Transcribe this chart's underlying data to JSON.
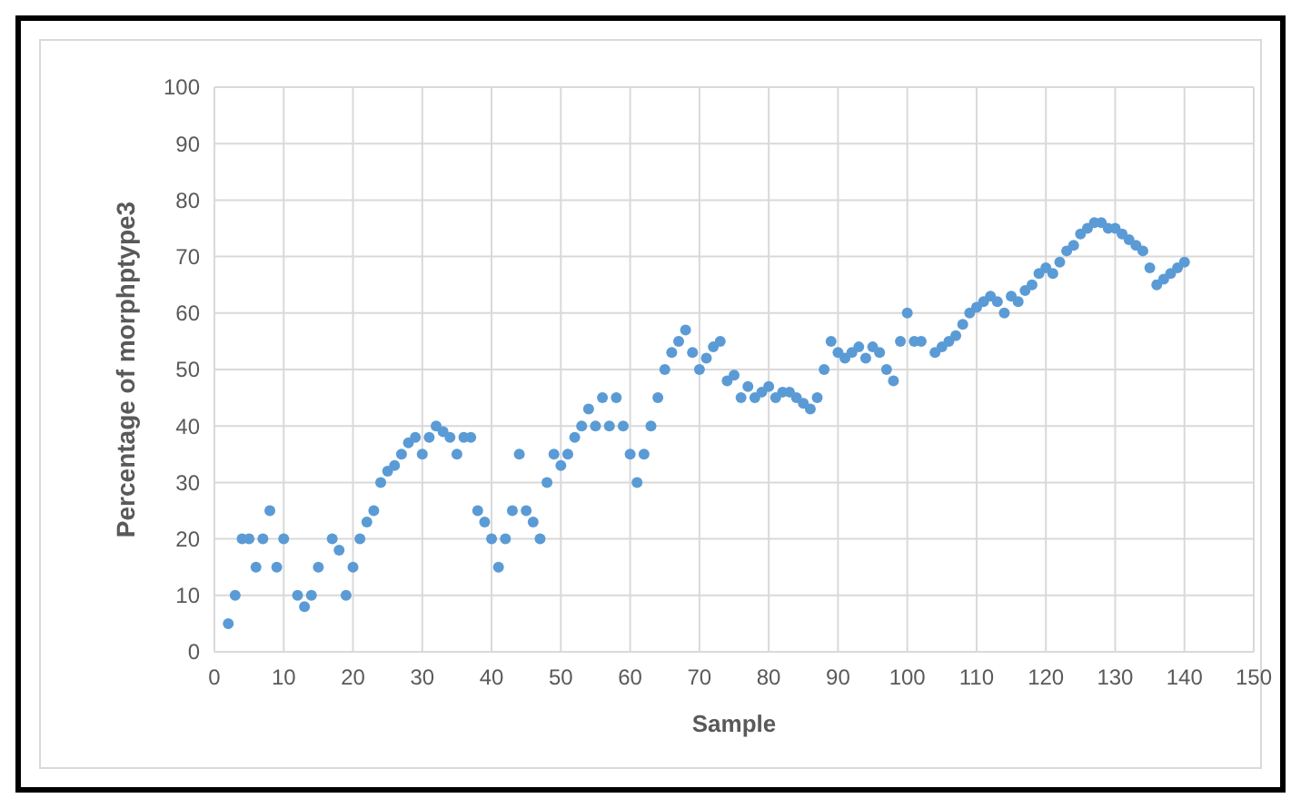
{
  "chart_data": {
    "type": "scatter",
    "xlabel": "Sample",
    "ylabel": "Percentage of morphptype3",
    "x": [
      2,
      3,
      4,
      5,
      6,
      7,
      8,
      9,
      10,
      12,
      13,
      14,
      15,
      17,
      18,
      19,
      20,
      21,
      22,
      23,
      24,
      25,
      26,
      27,
      28,
      29,
      30,
      31,
      32,
      33,
      34,
      35,
      36,
      37,
      38,
      39,
      40,
      41,
      42,
      43,
      44,
      45,
      46,
      47,
      48,
      49,
      50,
      51,
      52,
      53,
      54,
      55,
      56,
      57,
      58,
      59,
      60,
      61,
      62,
      63,
      64,
      65,
      66,
      67,
      68,
      69,
      70,
      71,
      72,
      73,
      74,
      75,
      76,
      77,
      78,
      79,
      80,
      81,
      82,
      83,
      84,
      85,
      86,
      87,
      88,
      89,
      90,
      91,
      92,
      93,
      94,
      95,
      96,
      97,
      98,
      99,
      100,
      101,
      102,
      104,
      105,
      106,
      107,
      108,
      109,
      110,
      111,
      112,
      113,
      114,
      115,
      116,
      117,
      118,
      119,
      120,
      121,
      122,
      123,
      124,
      125,
      126,
      127,
      128,
      129,
      130,
      131,
      132,
      133,
      134,
      135,
      136,
      137,
      138,
      139,
      140
    ],
    "series": [
      {
        "color": "#5b9bd5",
        "values": [
          5,
          10,
          20,
          20,
          15,
          20,
          25,
          15,
          20,
          10,
          8,
          10,
          15,
          20,
          18,
          10,
          15,
          20,
          23,
          25,
          30,
          32,
          33,
          35,
          37,
          38,
          35,
          38,
          40,
          39,
          38,
          35,
          38,
          38,
          25,
          23,
          20,
          15,
          20,
          25,
          35,
          25,
          23,
          20,
          30,
          35,
          33,
          35,
          38,
          40,
          43,
          40,
          45,
          40,
          45,
          40,
          35,
          30,
          35,
          40,
          45,
          50,
          53,
          55,
          57,
          53,
          50,
          52,
          54,
          55,
          48,
          49,
          45,
          47,
          45,
          46,
          47,
          45,
          46,
          46,
          45,
          44,
          43,
          45,
          50,
          55,
          53,
          52,
          53,
          54,
          52,
          54,
          53,
          50,
          48,
          55,
          60,
          55,
          55,
          53,
          54,
          55,
          56,
          58,
          60,
          61,
          62,
          63,
          62,
          60,
          63,
          62,
          64,
          65,
          67,
          68,
          67,
          69,
          71,
          72,
          74,
          75,
          76,
          76,
          75,
          75,
          74,
          73,
          72,
          71,
          68,
          65,
          66,
          67,
          68,
          69
        ]
      }
    ],
    "xlim": [
      0,
      150
    ],
    "xticks": [
      0,
      10,
      20,
      30,
      40,
      50,
      60,
      70,
      80,
      90,
      100,
      110,
      120,
      130,
      140,
      150
    ],
    "ylim": [
      0,
      100
    ],
    "yticks": [
      0,
      10,
      20,
      30,
      40,
      50,
      60,
      70,
      80,
      90,
      100
    ],
    "grid": true,
    "marker": "circle"
  }
}
